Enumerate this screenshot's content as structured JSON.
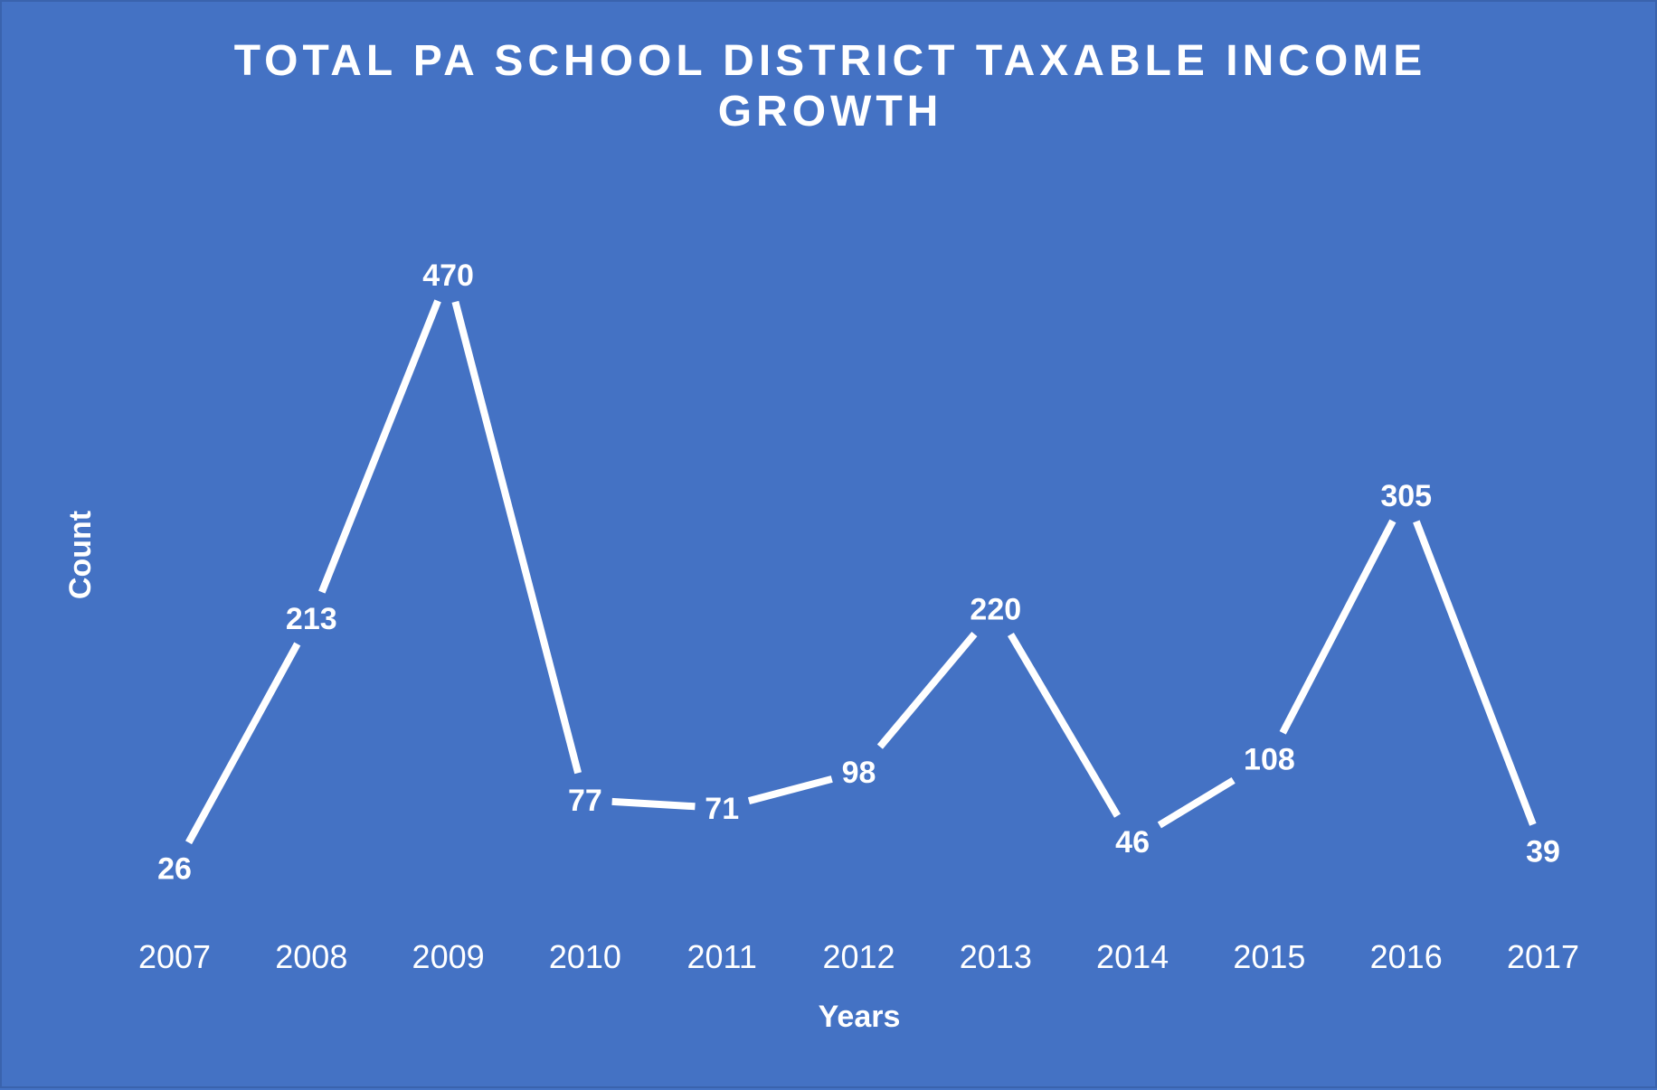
{
  "chart_data": {
    "type": "line",
    "title_lines": [
      "TOTAL PA SCHOOL DISTRICT TAXABLE INCOME",
      "GROWTH"
    ],
    "xlabel": "Years",
    "ylabel": "Count",
    "categories": [
      "2007",
      "2008",
      "2009",
      "2010",
      "2011",
      "2012",
      "2013",
      "2014",
      "2015",
      "2016",
      "2017"
    ],
    "series": [
      {
        "values": [
          26,
          213,
          470,
          77,
          71,
          98,
          220,
          46,
          108,
          305,
          39
        ]
      }
    ],
    "ylim": [
      0,
      470
    ],
    "grid": false,
    "legend": "none",
    "drop_lines": true,
    "colors": {
      "background": "#4472C4",
      "line": "#FFFFFF",
      "text": "#FFFFFF"
    }
  }
}
